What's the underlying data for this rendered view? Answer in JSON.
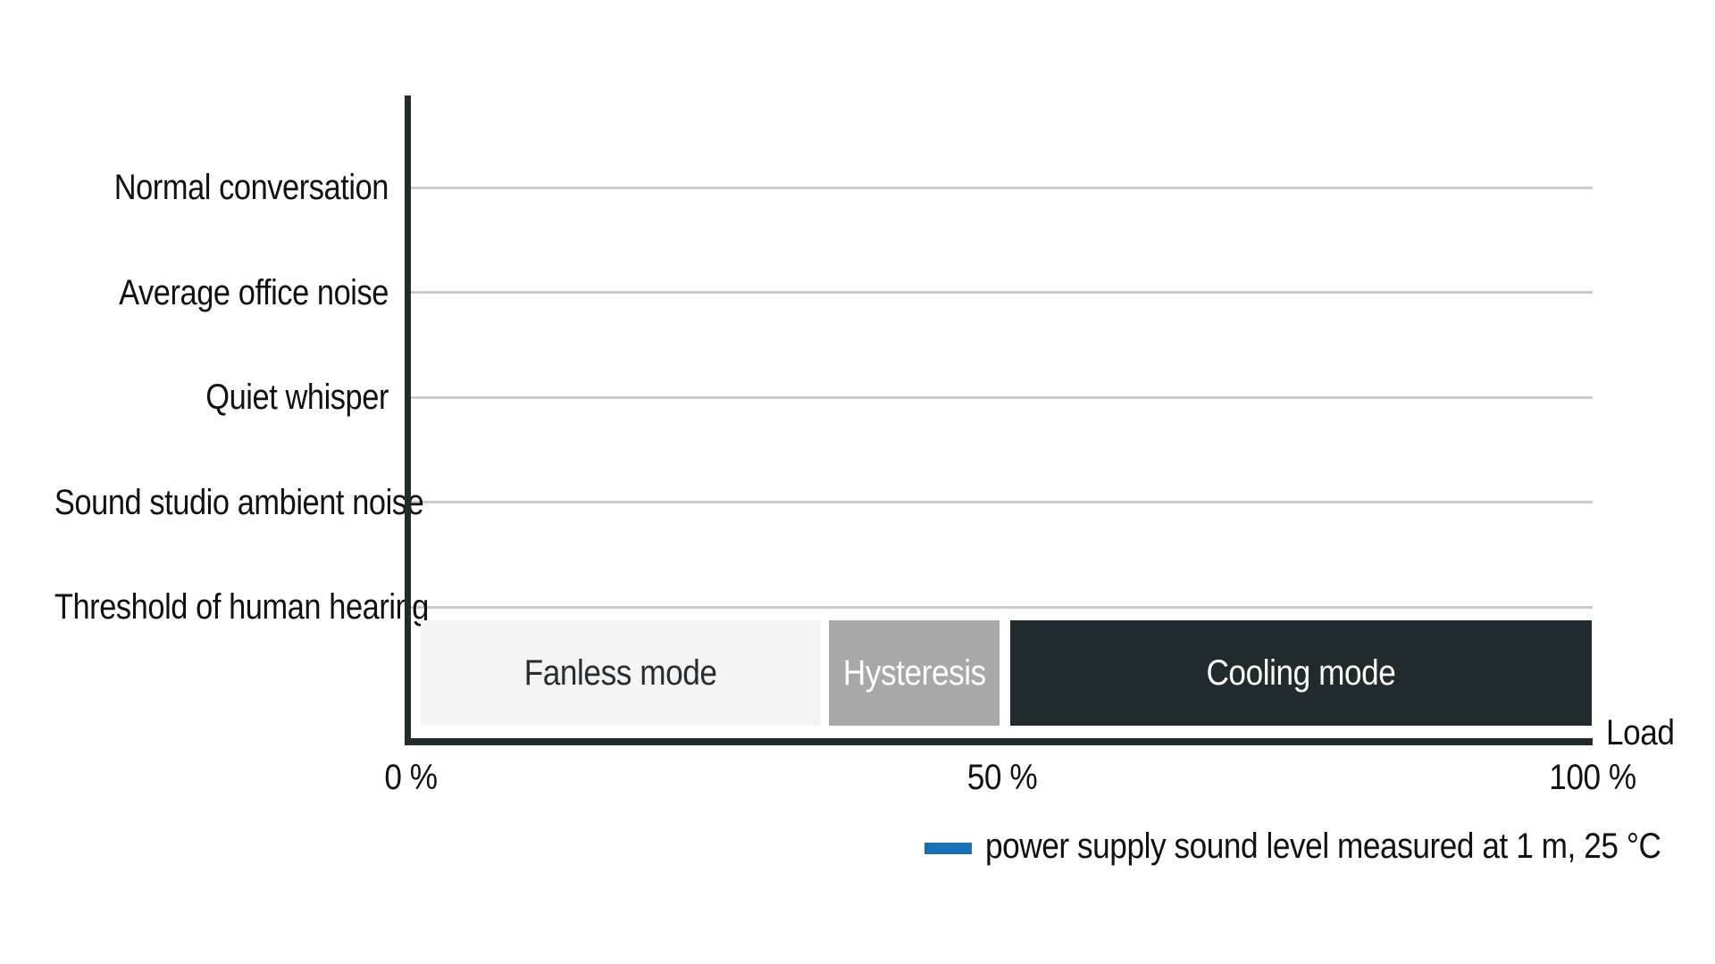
{
  "chart_data": {
    "type": "bar",
    "title": "",
    "xlabel": "Load",
    "x_axis": {
      "range_pct": [
        0,
        100
      ],
      "ticks": [
        {
          "value": 0,
          "label": "0 %"
        },
        {
          "value": 50,
          "label": "50 %"
        },
        {
          "value": 100,
          "label": "100 %"
        }
      ]
    },
    "y_axis": {
      "categories": [
        "Normal conversation",
        "Average office noise",
        "Quiet whisper",
        "Sound studio ambient noise",
        "Threshold of human hearing"
      ],
      "grid": "horizontal"
    },
    "segments": [
      {
        "name": "Fanless mode",
        "load_start_pct": 0,
        "load_end_pct": 35,
        "draw_start_pct": 0.8,
        "draw_end_pct": 34.7,
        "fill": "#f4f4f4",
        "text_color": "#262e31"
      },
      {
        "name": "Hysteresis",
        "load_start_pct": 35,
        "load_end_pct": 50,
        "draw_start_pct": 35.4,
        "draw_end_pct": 49.8,
        "fill": "#a8a8a8",
        "text_color": "#ffffff"
      },
      {
        "name": "Cooling mode",
        "load_start_pct": 50,
        "load_end_pct": 100,
        "draw_start_pct": 50.7,
        "draw_end_pct": 99.9,
        "fill": "#212a2d",
        "text_color": "#ffffff"
      }
    ],
    "legend": {
      "position": "bottom-right",
      "swatch_color": "#1a70b5",
      "label": "power supply sound level measured at 1 m, 25 °C"
    },
    "colors": {
      "axis": "#212a2d",
      "gridline": "#cbcbcb",
      "label_text": "#111111",
      "background": "#ffffff"
    }
  }
}
